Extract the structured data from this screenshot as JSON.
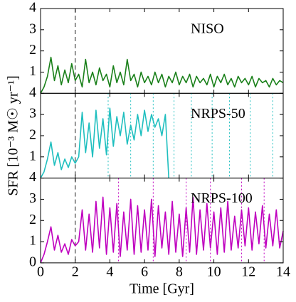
{
  "chart_data": [
    {
      "type": "line",
      "label": "NISO",
      "color": "#1a801a",
      "x": [
        0,
        0.2,
        0.4,
        0.6,
        0.8,
        1,
        1.2,
        1.4,
        1.6,
        1.8,
        2,
        2.2,
        2.4,
        2.6,
        2.8,
        3,
        3.2,
        3.4,
        3.6,
        3.8,
        4,
        4.2,
        4.4,
        4.6,
        4.8,
        5,
        5.2,
        5.4,
        5.6,
        5.8,
        6,
        6.2,
        6.4,
        6.6,
        6.8,
        7,
        7.2,
        7.4,
        7.6,
        7.8,
        8,
        8.2,
        8.4,
        8.6,
        8.8,
        9,
        9.2,
        9.4,
        9.6,
        9.8,
        10,
        10.2,
        10.4,
        10.6,
        10.8,
        11,
        11.2,
        11.4,
        11.6,
        11.8,
        12,
        12.2,
        12.4,
        12.6,
        12.8,
        13,
        13.2,
        13.4,
        13.6,
        13.8,
        14
      ],
      "values": [
        0,
        0.3,
        0.8,
        1.7,
        0.6,
        1.3,
        0.4,
        1.1,
        0.5,
        1.4,
        0.6,
        0.9,
        0.3,
        1.6,
        0.5,
        1.0,
        0.4,
        1.2,
        0.6,
        0.9,
        0.3,
        1.3,
        0.5,
        1.0,
        0.4,
        1.6,
        0.6,
        0.9,
        0.3,
        1.0,
        0.5,
        0.8,
        0.4,
        1.0,
        0.5,
        0.9,
        0.3,
        0.8,
        0.5,
        1.0,
        0.4,
        0.8,
        0.5,
        0.9,
        0.3,
        0.8,
        0.5,
        0.7,
        0.4,
        0.9,
        0.3,
        0.8,
        0.5,
        0.9,
        0.4,
        0.7,
        0.3,
        0.8,
        0.5,
        0.7,
        0.4,
        0.8,
        0.3,
        0.7,
        0.5,
        0.6,
        0.3,
        0.7,
        0.4,
        0.6,
        0.5
      ],
      "xlim": [
        0,
        14
      ],
      "ylim": [
        0,
        4
      ],
      "yticks": [
        1,
        2,
        3,
        4
      ],
      "reference_x": 2,
      "vlines": [],
      "vline_color": "#1a801a"
    },
    {
      "type": "line",
      "label": "NRPS-50",
      "color": "#1fbfbf",
      "ylabel": "SFR [10⁻³ M☉ yr⁻¹]",
      "x": [
        0,
        0.2,
        0.4,
        0.6,
        0.8,
        1,
        1.2,
        1.4,
        1.6,
        1.8,
        2,
        2.2,
        2.4,
        2.6,
        2.8,
        3,
        3.2,
        3.4,
        3.6,
        3.8,
        4,
        4.2,
        4.4,
        4.6,
        4.8,
        5,
        5.2,
        5.4,
        5.6,
        5.8,
        6,
        6.2,
        6.4,
        6.6,
        6.8,
        7,
        7.2,
        7.4,
        7.6,
        7.8,
        8,
        8.2,
        8.4,
        8.6,
        8.8,
        9,
        9.2,
        9.4,
        9.6,
        9.8,
        10,
        10.2,
        10.4,
        10.6,
        10.8,
        11,
        11.2,
        11.4,
        11.6,
        11.8,
        12,
        12.2,
        12.4,
        12.6,
        12.8,
        13,
        13.2,
        13.4,
        13.6,
        13.8,
        14
      ],
      "values": [
        0,
        0.3,
        0.9,
        1.7,
        0.6,
        1.2,
        0.4,
        0.9,
        0.5,
        1.0,
        0.7,
        1.0,
        3.1,
        1.2,
        2.6,
        1.0,
        3.2,
        1.4,
        2.8,
        1.1,
        3.3,
        1.5,
        2.9,
        2.0,
        3.1,
        1.6,
        2.5,
        1.8,
        3.0,
        2.0,
        3.2,
        2.2,
        3.0,
        2.4,
        2.8,
        2.0,
        3.0,
        0,
        null,
        null,
        null,
        null,
        null,
        null,
        null,
        null,
        null,
        null,
        null,
        null,
        null,
        null,
        null,
        null,
        null,
        null,
        null,
        null,
        null,
        null,
        null,
        null,
        null,
        null,
        null,
        null,
        null,
        null,
        null,
        null,
        null
      ],
      "xlim": [
        0,
        14
      ],
      "ylim": [
        0,
        4
      ],
      "yticks": [
        1,
        2,
        3,
        4
      ],
      "reference_x": 2,
      "vlines": [
        3.9,
        5.2,
        6.5,
        7.7,
        8.7,
        9.9,
        10.9,
        12.1,
        13.4
      ],
      "vline_color": "#1fbfbf"
    },
    {
      "type": "line",
      "label": "NRPS-100",
      "color": "#bf00bf",
      "xlabel": "Time [Gyr]",
      "x": [
        0,
        0.2,
        0.4,
        0.6,
        0.8,
        1,
        1.2,
        1.4,
        1.6,
        1.8,
        2,
        2.2,
        2.4,
        2.6,
        2.8,
        3,
        3.2,
        3.4,
        3.6,
        3.8,
        4,
        4.2,
        4.4,
        4.6,
        4.8,
        5,
        5.2,
        5.4,
        5.6,
        5.8,
        6,
        6.2,
        6.4,
        6.6,
        6.8,
        7,
        7.2,
        7.4,
        7.6,
        7.8,
        8,
        8.2,
        8.4,
        8.6,
        8.8,
        9,
        9.2,
        9.4,
        9.6,
        9.8,
        10,
        10.2,
        10.4,
        10.6,
        10.8,
        11,
        11.2,
        11.4,
        11.6,
        11.8,
        12,
        12.2,
        12.4,
        12.6,
        12.8,
        13,
        13.2,
        13.4,
        13.6,
        13.8,
        14
      ],
      "values": [
        0,
        0.4,
        1.0,
        1.7,
        0.6,
        1.3,
        0.5,
        0.9,
        0.4,
        1.1,
        0.8,
        1.0,
        2.5,
        0.6,
        2.3,
        0.5,
        2.9,
        0.7,
        3.1,
        0.4,
        2.6,
        0.5,
        2.8,
        0.3,
        2.4,
        0.6,
        3.0,
        0.4,
        2.7,
        0.5,
        2.5,
        0.6,
        3.0,
        0.3,
        2.7,
        0.7,
        2.4,
        0.4,
        2.9,
        0.5,
        2.3,
        0.3,
        2.6,
        0.5,
        3.1,
        0.4,
        2.5,
        0.6,
        2.8,
        0.7,
        2.4,
        0.4,
        2.6,
        0.5,
        2.9,
        0.6,
        2.2,
        0.7,
        2.5,
        0.8,
        2.6,
        0.6,
        2.4,
        0.9,
        2.7,
        0.7,
        2.3,
        0.8,
        2.5,
        0.7,
        1.5
      ],
      "xlim": [
        0,
        14
      ],
      "ylim": [
        0,
        4
      ],
      "yticks": [
        0,
        1,
        2,
        3,
        4
      ],
      "xticks": [
        0,
        2,
        4,
        6,
        8,
        10,
        12,
        14
      ],
      "reference_x": 2,
      "vlines": [
        4.5,
        6.5,
        8.4,
        9.8,
        11.6,
        12.9
      ],
      "vline_color": "#bf00bf"
    }
  ]
}
